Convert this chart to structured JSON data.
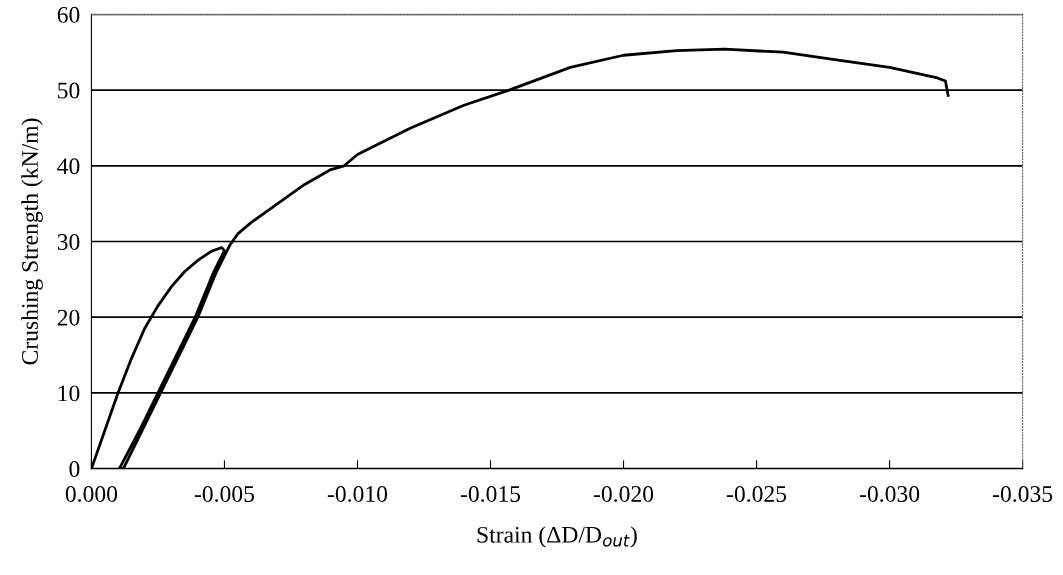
{
  "chart_data": {
    "type": "line",
    "xlabel": "Strain (ΔD/D$_{out}$)",
    "ylabel": "Crushing Strength (kN/m)",
    "series": [
      {
        "color": "#000000",
        "x": [
          0,
          -0.0005,
          -0.001,
          -0.0015,
          -0.002,
          -0.0025,
          -0.003,
          -0.0035,
          -0.004,
          -0.0045,
          -0.0049,
          -0.005,
          -0.0046,
          -0.0039,
          -0.0032,
          -0.0025,
          -0.0018,
          -0.00105,
          -0.0012,
          -0.0019,
          -0.0026,
          -0.0033,
          -0.004,
          -0.0047,
          -0.0052,
          -0.0055,
          -0.006,
          -0.007,
          -0.008,
          -0.009,
          -0.0095,
          -0.01,
          -0.012,
          -0.014,
          -0.0157,
          -0.018,
          -0.02,
          -0.022,
          -0.0238,
          -0.026,
          -0.028,
          -0.03,
          -0.0318,
          -0.0321,
          -0.0322
        ],
        "values": [
          0,
          5,
          10,
          14.5,
          18.5,
          21.5,
          24,
          26,
          27.5,
          28.7,
          29.2,
          28.8,
          26,
          20,
          15,
          10,
          5,
          0,
          0,
          5,
          10,
          15,
          20,
          26,
          29.5,
          31,
          32.5,
          35,
          37.5,
          39.5,
          40,
          41.5,
          45,
          48,
          50,
          53,
          54.6,
          55.2,
          55.4,
          55,
          54,
          53,
          51.6,
          51.2,
          49.3
        ]
      }
    ],
    "xlim": [
      0,
      -0.035
    ],
    "xticks": [
      {
        "value": 0,
        "label": "0.000"
      },
      {
        "value": -0.005,
        "label": "-0.005"
      },
      {
        "value": -0.01,
        "label": "-0.010"
      },
      {
        "value": -0.015,
        "label": "-0.015"
      },
      {
        "value": -0.02,
        "label": "-0.020"
      },
      {
        "value": -0.025,
        "label": "-0.025"
      },
      {
        "value": -0.03,
        "label": "-0.030"
      },
      {
        "value": -0.035,
        "label": "-0.035"
      }
    ],
    "ylim": [
      0,
      60
    ],
    "yticks": [
      0,
      10,
      20,
      30,
      40,
      50,
      60
    ],
    "grid": "y",
    "marker": "none",
    "line_style": "solid"
  }
}
